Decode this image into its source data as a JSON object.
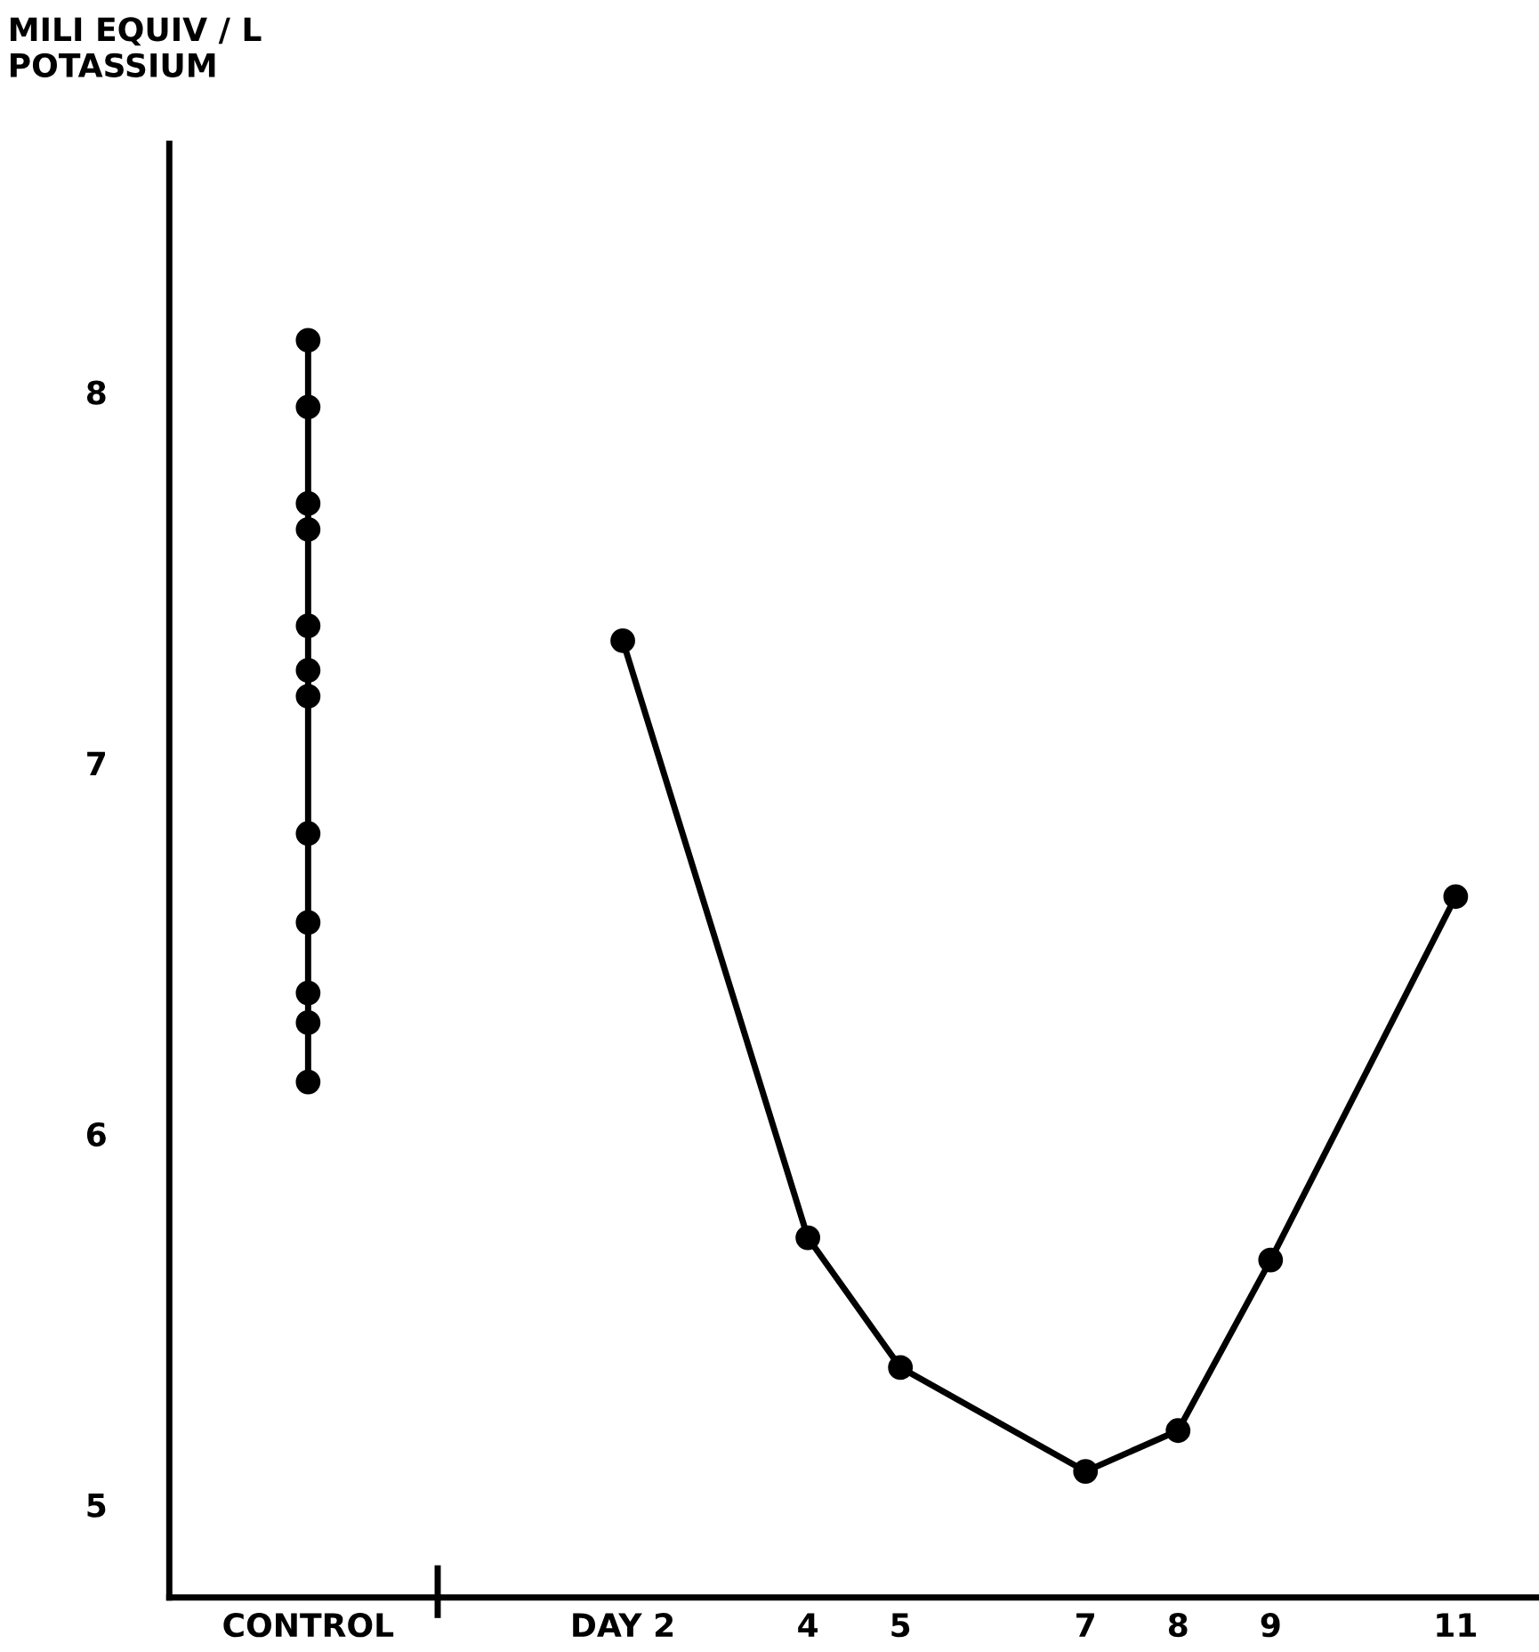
{
  "chart_data": {
    "type": "line",
    "ylabel": "MILI EQUIV / L\nPOTASSIUM",
    "xlim": [
      -2.9,
      11.9
    ],
    "ylim": [
      4.75,
      8.67
    ],
    "xticks": [
      {
        "value": -1.4,
        "label": "CONTROL"
      },
      {
        "value": 2,
        "label": "DAY 2"
      },
      4,
      5,
      7,
      8,
      9,
      11
    ],
    "yticks": [
      5,
      6,
      7,
      8
    ],
    "series": [
      {
        "color": "#000000",
        "x": [
          -1.4,
          -1.4,
          -1.4,
          -1.4,
          -1.4,
          -1.4,
          -1.4,
          -1.4,
          -1.4,
          -1.4,
          -1.4,
          -1.4
        ],
        "values": [
          8.14,
          7.96,
          7.7,
          7.63,
          7.37,
          7.25,
          7.18,
          6.81,
          6.57,
          6.38,
          6.3,
          6.14
        ]
      },
      {
        "color": "#000000",
        "x": [
          2,
          4,
          5,
          7,
          8,
          9,
          11
        ],
        "values": [
          7.33,
          5.72,
          5.37,
          5.09,
          5.2,
          5.66,
          6.64
        ]
      }
    ],
    "marker": "circle",
    "line_style": "solid",
    "grid": false,
    "legend": false
  }
}
